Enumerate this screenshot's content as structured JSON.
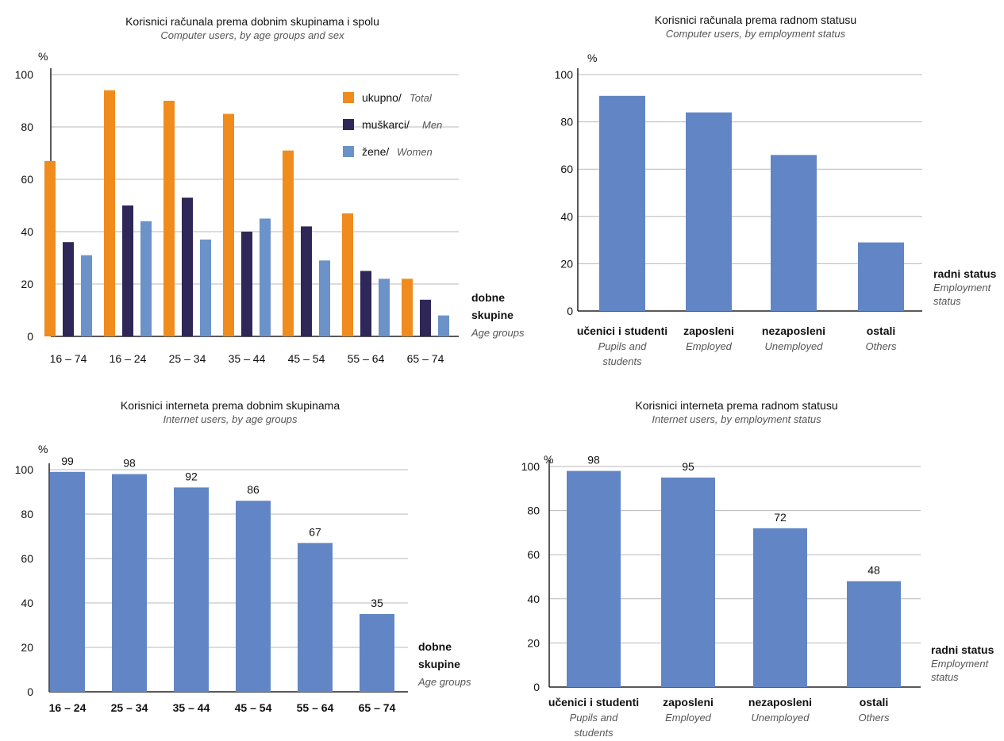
{
  "colors": {
    "total": "#f08b1d",
    "men": "#2e2757",
    "women": "#6b93c9",
    "bar": "#6286c5"
  },
  "chart_data": [
    {
      "type": "bar",
      "title": "Korisnici računala prema dobnim skupinama i spolu",
      "subtitle": "Computer users, by age groups and sex",
      "ylabel": "%",
      "xlabel": "dobne skupine",
      "xlabel_en": "Age groups",
      "ylim": [
        0,
        100
      ],
      "yticks": [
        0,
        20,
        40,
        60,
        80,
        100
      ],
      "legend_position": "top-right",
      "categories": [
        "16 – 74",
        "16 – 24",
        "25 – 34",
        "35 – 44",
        "45 – 54",
        "55 – 64",
        "65 – 74"
      ],
      "series": [
        {
          "name": "ukupno/",
          "name_en": "Total",
          "color": "#f08b1d",
          "values": [
            67,
            94,
            90,
            85,
            71,
            47,
            22
          ]
        },
        {
          "name": "muškarci/",
          "name_en": "Men",
          "color": "#2e2757",
          "values": [
            36,
            50,
            53,
            40,
            42,
            25,
            14
          ]
        },
        {
          "name": "žene/",
          "name_en": "Women",
          "color": "#6b93c9",
          "values": [
            31,
            44,
            37,
            45,
            29,
            22,
            8
          ]
        }
      ]
    },
    {
      "type": "bar",
      "title": "Korisnici računala prema radnom statusu",
      "subtitle": "Computer users, by employment status",
      "ylabel": "%",
      "xlabel": "radni status",
      "xlabel_en": "Employment status",
      "ylim": [
        0,
        100
      ],
      "yticks": [
        0,
        20,
        40,
        60,
        80,
        100
      ],
      "categories": [
        "učenici i studenti",
        "zaposleni",
        "nezaposleni",
        "ostali"
      ],
      "categories_en": [
        "Pupils and students",
        "Employed",
        "Unemployed",
        "Others"
      ],
      "values": [
        91,
        84,
        66,
        29
      ]
    },
    {
      "type": "bar",
      "title": "Korisnici interneta prema dobnim skupinama",
      "subtitle": "Internet users, by age groups",
      "ylabel": "%",
      "xlabel": "dobne skupine",
      "xlabel_en": "Age groups",
      "ylim": [
        0,
        100
      ],
      "yticks": [
        0,
        20,
        40,
        60,
        80,
        100
      ],
      "categories": [
        "16 – 24",
        "25 – 34",
        "35 – 44",
        "45 – 54",
        "55 – 64",
        "65 – 74"
      ],
      "values": [
        99,
        98,
        92,
        86,
        67,
        35
      ],
      "data_labels": true
    },
    {
      "type": "bar",
      "title": "Korisnici interneta prema radnom statusu",
      "subtitle": "Internet users, by employment status",
      "ylabel": "%",
      "xlabel": "radni status",
      "xlabel_en": "Employment status",
      "ylim": [
        0,
        100
      ],
      "yticks": [
        0,
        20,
        40,
        60,
        80,
        100
      ],
      "categories": [
        "učenici i studenti",
        "zaposleni",
        "nezaposleni",
        "ostali"
      ],
      "categories_en": [
        "Pupils and students",
        "Employed",
        "Unemployed",
        "Others"
      ],
      "values": [
        98,
        95,
        72,
        48
      ],
      "data_labels": true
    }
  ]
}
